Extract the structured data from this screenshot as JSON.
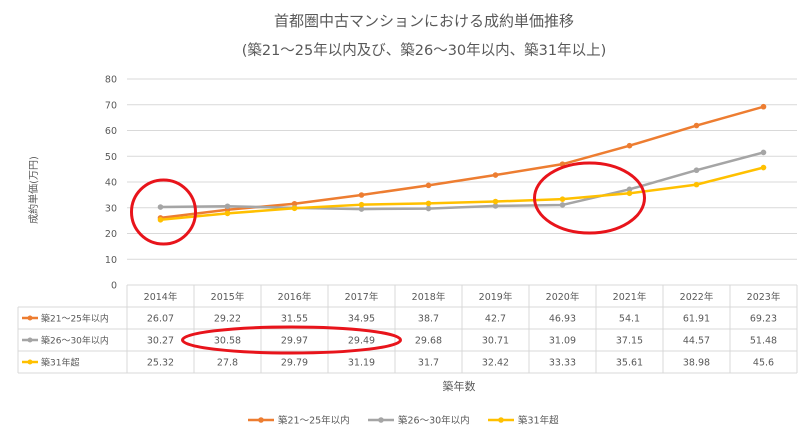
{
  "chart_data": {
    "type": "line",
    "title": "首都圏中古マンションにおける成約単価推移",
    "subtitle": "(築21～25年以内及び、築26～30年以内、築31年以上)",
    "xlabel": "築年数",
    "ylabel": "成約単価(万円)",
    "ylim": [
      0,
      80
    ],
    "yticks": [
      0,
      10,
      20,
      30,
      40,
      50,
      60,
      70,
      80
    ],
    "categories": [
      "2014年",
      "2015年",
      "2016年",
      "2017年",
      "2018年",
      "2019年",
      "2020年",
      "2021年",
      "2022年",
      "2023年"
    ],
    "series": [
      {
        "name": "築21～25年以内",
        "color": "#ED7D31",
        "values": [
          26.07,
          29.22,
          31.55,
          34.95,
          38.7,
          42.7,
          46.93,
          54.1,
          61.91,
          69.23
        ],
        "labels": [
          "26.07",
          "29.22",
          "31.55",
          "34.95",
          "38.7",
          "42.7",
          "46.93",
          "54.1",
          "61.91",
          "69.23"
        ]
      },
      {
        "name": "築26～30年以内",
        "color": "#A5A5A5",
        "values": [
          30.27,
          30.58,
          29.97,
          29.49,
          29.68,
          30.71,
          31.09,
          37.15,
          44.57,
          51.48
        ],
        "labels": [
          "30.27",
          "30.58",
          "29.97",
          "29.49",
          "29.68",
          "30.71",
          "31.09",
          "37.15",
          "44.57",
          "51.48"
        ]
      },
      {
        "name": "築31年超",
        "color": "#FFC000",
        "values": [
          25.32,
          27.8,
          29.79,
          31.19,
          31.7,
          32.42,
          33.33,
          35.61,
          38.98,
          45.6
        ],
        "labels": [
          "25.32",
          "27.8",
          "29.79",
          "31.19",
          "31.7",
          "32.42",
          "33.33",
          "35.61",
          "38.98",
          "45.6"
        ]
      }
    ],
    "grid": true,
    "data_table": true,
    "legend_position": "bottom",
    "annotation_color": "#E8141B"
  }
}
